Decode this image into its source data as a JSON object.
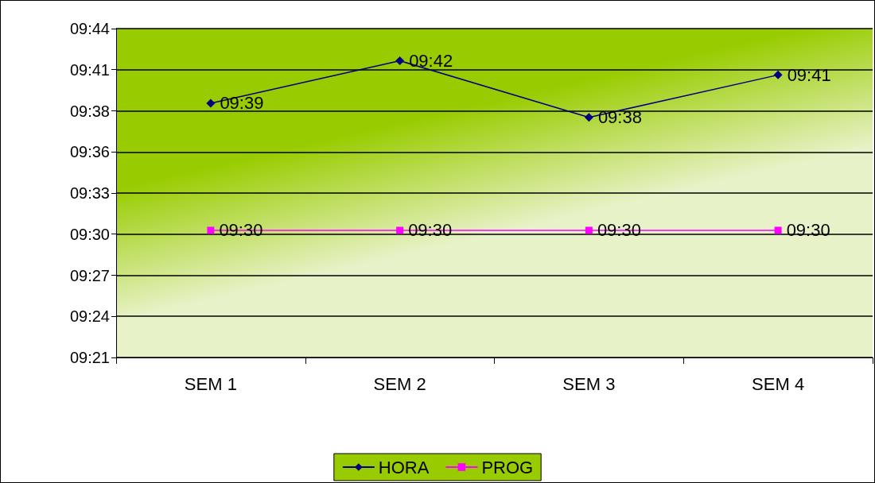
{
  "chart_data": {
    "type": "line",
    "categories": [
      "SEM 1",
      "SEM 2",
      "SEM 3",
      "SEM 4"
    ],
    "series": [
      {
        "name": "HORA",
        "color": "#000080",
        "marker": "diamond",
        "values": [
          9.65,
          9.7,
          9.6333,
          9.6833
        ],
        "value_labels": [
          "09:39",
          "09:42",
          "09:38",
          "09:41"
        ]
      },
      {
        "name": "PROG",
        "color": "#ff00ff",
        "marker": "square",
        "values": [
          9.5,
          9.5,
          9.5,
          9.5
        ],
        "value_labels": [
          "09:30",
          "09:30",
          "09:30",
          "09:30"
        ]
      }
    ],
    "ylim": [
      9.35,
      9.738
    ],
    "yticks": [
      {
        "value": 9.35,
        "label": "09:21"
      },
      {
        "value": 9.3985,
        "label": "09:24"
      },
      {
        "value": 9.447,
        "label": "09:27"
      },
      {
        "value": 9.4955,
        "label": "09:30"
      },
      {
        "value": 9.544,
        "label": "09:33"
      },
      {
        "value": 9.5925,
        "label": "09:36"
      },
      {
        "value": 9.641,
        "label": "09:38"
      },
      {
        "value": 9.6895,
        "label": "09:41"
      },
      {
        "value": 9.738,
        "label": "09:44"
      }
    ],
    "grid": "y",
    "legend": "bottom",
    "line_style": "solid"
  }
}
